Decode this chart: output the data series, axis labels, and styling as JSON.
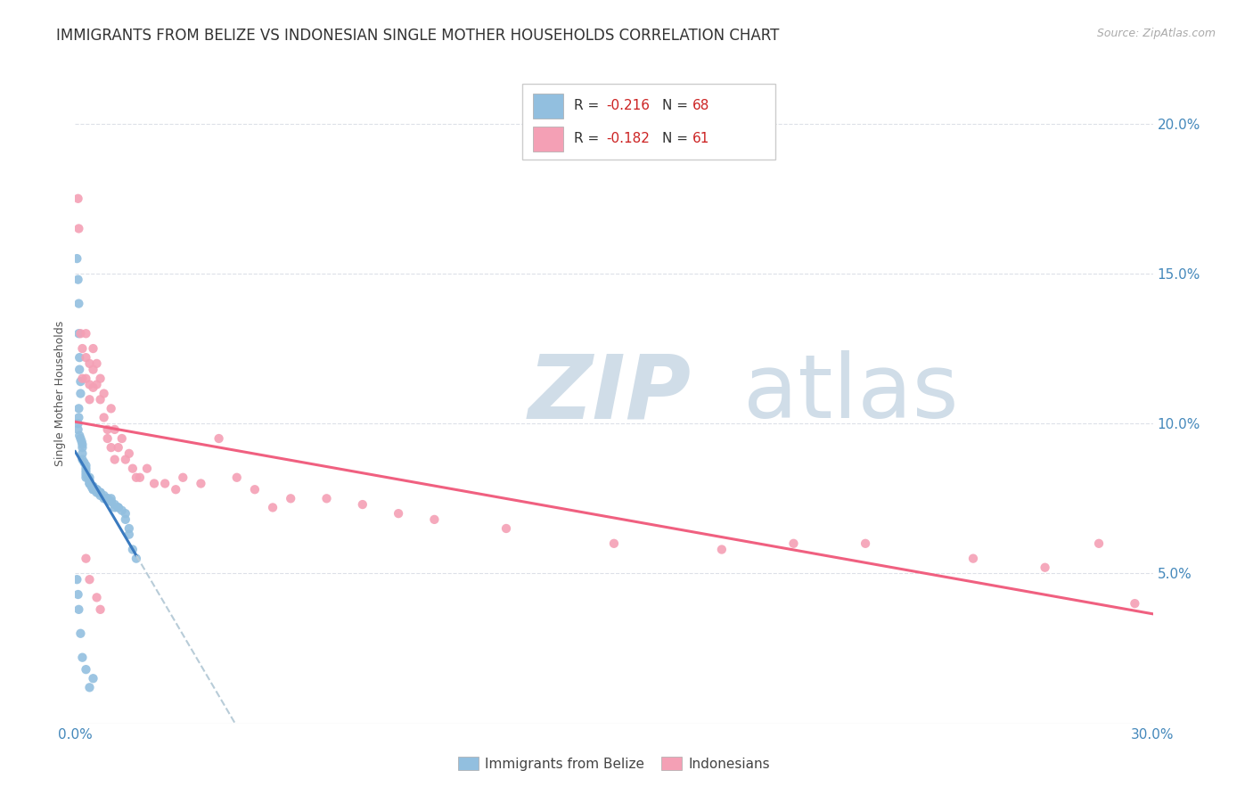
{
  "title": "IMMIGRANTS FROM BELIZE VS INDONESIAN SINGLE MOTHER HOUSEHOLDS CORRELATION CHART",
  "source": "Source: ZipAtlas.com",
  "ylabel": "Single Mother Households",
  "right_yticks": [
    "20.0%",
    "15.0%",
    "10.0%",
    "5.0%"
  ],
  "right_ytick_vals": [
    0.2,
    0.15,
    0.1,
    0.05
  ],
  "belize_color": "#92bfdf",
  "indonesian_color": "#f4a0b5",
  "belize_line_color": "#3a7abf",
  "indonesian_line_color": "#f06080",
  "trendline_dash_color": "#b8ccd8",
  "watermark_zip": "ZIP",
  "watermark_atlas": "atlas",
  "watermark_color": "#d0dde8",
  "background_color": "#ffffff",
  "xlim": [
    0.0,
    0.3
  ],
  "ylim": [
    0.0,
    0.22
  ],
  "grid_color": "#dde0e8",
  "title_fontsize": 12,
  "axis_label_fontsize": 9,
  "legend_r1": "R = -0.216",
  "legend_n1": "N = 68",
  "legend_r2": "R = -0.182",
  "legend_n2": "N = 61",
  "belize_scatter_x": [
    0.0005,
    0.0008,
    0.001,
    0.001,
    0.0012,
    0.0012,
    0.0015,
    0.0015,
    0.001,
    0.001,
    0.0008,
    0.0008,
    0.0012,
    0.0015,
    0.0018,
    0.002,
    0.002,
    0.002,
    0.002,
    0.0025,
    0.003,
    0.003,
    0.003,
    0.003,
    0.003,
    0.0035,
    0.004,
    0.004,
    0.004,
    0.004,
    0.0045,
    0.005,
    0.005,
    0.005,
    0.005,
    0.006,
    0.006,
    0.006,
    0.0065,
    0.007,
    0.007,
    0.007,
    0.008,
    0.008,
    0.009,
    0.009,
    0.01,
    0.01,
    0.01,
    0.011,
    0.011,
    0.012,
    0.012,
    0.013,
    0.014,
    0.014,
    0.015,
    0.015,
    0.016,
    0.017,
    0.0005,
    0.0008,
    0.001,
    0.0015,
    0.002,
    0.003,
    0.004,
    0.005
  ],
  "belize_scatter_y": [
    0.155,
    0.148,
    0.14,
    0.13,
    0.122,
    0.118,
    0.114,
    0.11,
    0.105,
    0.102,
    0.1,
    0.098,
    0.096,
    0.095,
    0.094,
    0.093,
    0.092,
    0.09,
    0.088,
    0.087,
    0.086,
    0.085,
    0.084,
    0.083,
    0.082,
    0.082,
    0.082,
    0.081,
    0.08,
    0.08,
    0.079,
    0.079,
    0.079,
    0.078,
    0.078,
    0.078,
    0.078,
    0.077,
    0.077,
    0.077,
    0.077,
    0.076,
    0.076,
    0.075,
    0.075,
    0.075,
    0.075,
    0.074,
    0.074,
    0.073,
    0.072,
    0.072,
    0.072,
    0.071,
    0.07,
    0.068,
    0.065,
    0.063,
    0.058,
    0.055,
    0.048,
    0.043,
    0.038,
    0.03,
    0.022,
    0.018,
    0.012,
    0.015
  ],
  "indonesian_scatter_x": [
    0.0008,
    0.001,
    0.0015,
    0.002,
    0.002,
    0.003,
    0.003,
    0.003,
    0.004,
    0.004,
    0.004,
    0.005,
    0.005,
    0.005,
    0.006,
    0.006,
    0.007,
    0.007,
    0.008,
    0.008,
    0.009,
    0.009,
    0.01,
    0.01,
    0.011,
    0.011,
    0.012,
    0.013,
    0.014,
    0.015,
    0.016,
    0.017,
    0.018,
    0.02,
    0.022,
    0.025,
    0.028,
    0.03,
    0.035,
    0.04,
    0.045,
    0.05,
    0.055,
    0.06,
    0.07,
    0.08,
    0.09,
    0.1,
    0.12,
    0.15,
    0.18,
    0.2,
    0.22,
    0.25,
    0.27,
    0.285,
    0.295,
    0.003,
    0.004,
    0.006,
    0.007
  ],
  "indonesian_scatter_y": [
    0.175,
    0.165,
    0.13,
    0.125,
    0.115,
    0.13,
    0.122,
    0.115,
    0.12,
    0.113,
    0.108,
    0.125,
    0.118,
    0.112,
    0.12,
    0.113,
    0.115,
    0.108,
    0.11,
    0.102,
    0.098,
    0.095,
    0.105,
    0.092,
    0.098,
    0.088,
    0.092,
    0.095,
    0.088,
    0.09,
    0.085,
    0.082,
    0.082,
    0.085,
    0.08,
    0.08,
    0.078,
    0.082,
    0.08,
    0.095,
    0.082,
    0.078,
    0.072,
    0.075,
    0.075,
    0.073,
    0.07,
    0.068,
    0.065,
    0.06,
    0.058,
    0.06,
    0.06,
    0.055,
    0.052,
    0.06,
    0.04,
    0.055,
    0.048,
    0.042,
    0.038
  ]
}
